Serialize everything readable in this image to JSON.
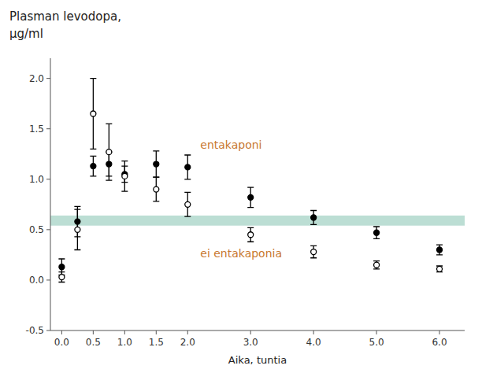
{
  "chart_data": {
    "type": "scatter",
    "title": "Plasman levodopa,",
    "subtitle": "μg/ml",
    "xlabel": "Aika, tuntia",
    "x": [
      0,
      0.25,
      0.5,
      0.75,
      1.0,
      1.5,
      2.0,
      3.0,
      4.0,
      5.0,
      6.0
    ],
    "series": [
      {
        "name": "entakaponi",
        "color": "#000000",
        "marker": "circle",
        "values": [
          0.13,
          0.58,
          1.13,
          1.15,
          1.05,
          1.15,
          1.12,
          0.82,
          0.62,
          0.47,
          0.3
        ],
        "errors": [
          0.08,
          0.15,
          0.1,
          0.12,
          0.08,
          0.13,
          0.12,
          0.1,
          0.07,
          0.06,
          0.05
        ]
      },
      {
        "name": "ei entakaponia",
        "color": "#000000",
        "marker": "circle-open",
        "values": [
          0.03,
          0.5,
          1.65,
          1.27,
          1.03,
          0.9,
          0.75,
          0.45,
          0.28,
          0.15,
          0.11
        ],
        "errors": [
          0.05,
          0.2,
          0.35,
          0.28,
          0.15,
          0.12,
          0.12,
          0.07,
          0.06,
          0.04,
          0.03
        ]
      }
    ],
    "band": [
      0.54,
      0.64
    ],
    "xlim": [
      -0.18,
      6.4
    ],
    "ylim": [
      -0.5,
      2.2
    ],
    "xticks": [
      {
        "value": 0,
        "label": "0.0"
      },
      0.5,
      {
        "value": 1,
        "label": "1.0"
      },
      1.5,
      {
        "value": 2,
        "label": "2.0"
      },
      {
        "value": 3,
        "label": "3.0"
      },
      {
        "value": 4,
        "label": "4.0"
      },
      {
        "value": 5,
        "label": "5.0"
      },
      {
        "value": 6,
        "label": "6.0"
      }
    ],
    "yticks": [
      -0.5,
      {
        "value": 0,
        "label": "0.0"
      },
      0.5,
      {
        "value": 1.0,
        "label": "1.0"
      },
      1.5,
      {
        "value": 2.0,
        "label": "2.0"
      }
    ],
    "grid": false
  }
}
